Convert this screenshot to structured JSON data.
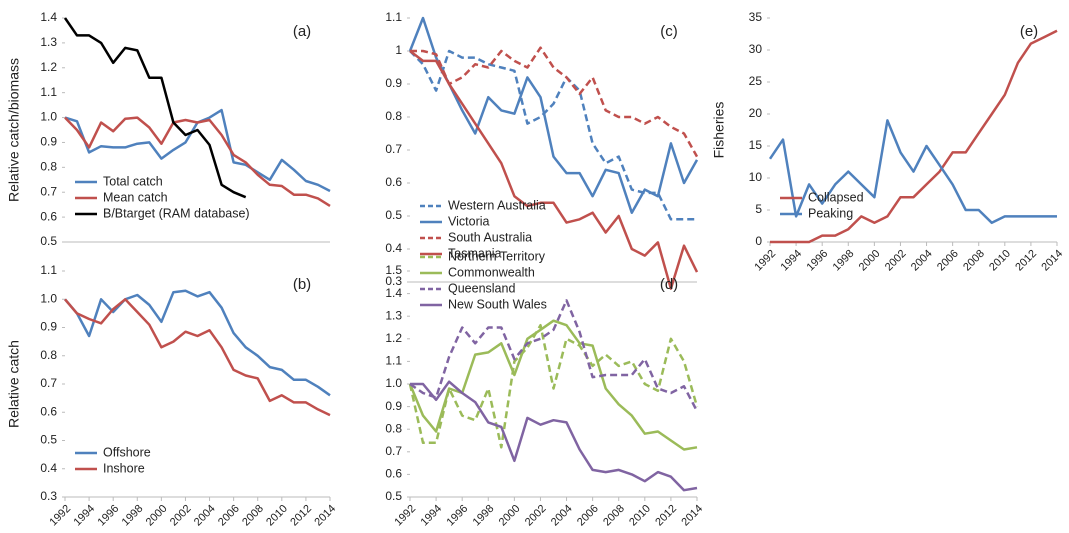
{
  "chart_data": [
    {
      "type": "line",
      "panel_label": "(a)",
      "ylabel": "Relative catch/biomass",
      "legend": "lower left",
      "x": [
        1992,
        1993,
        1994,
        1995,
        1996,
        1997,
        1998,
        1999,
        2000,
        2001,
        2002,
        2003,
        2004,
        2005,
        2006,
        2007,
        2008,
        2009,
        2010,
        2011,
        2012,
        2013,
        2014
      ],
      "xlim": [
        1992,
        2014
      ],
      "ylim": [
        0.5,
        1.4
      ],
      "yticks": [
        0.5,
        0.6,
        0.7,
        0.8,
        0.9,
        {
          "value": 1,
          "label": "1.0"
        },
        1.1,
        1.2,
        1.3,
        1.4
      ],
      "series": [
        {
          "name": "Total catch",
          "color": "#4f81bd",
          "dash": false,
          "values": [
            1.0,
            0.985,
            0.86,
            0.885,
            0.88,
            0.88,
            0.895,
            0.9,
            0.835,
            0.87,
            0.9,
            0.98,
            1.0,
            1.03,
            0.82,
            0.81,
            0.78,
            0.75,
            0.83,
            0.79,
            0.745,
            0.73,
            0.705
          ]
        },
        {
          "name": "Mean catch",
          "color": "#c0504d",
          "dash": false,
          "values": [
            1.0,
            0.95,
            0.88,
            0.98,
            0.945,
            0.995,
            1.0,
            0.96,
            0.895,
            0.98,
            0.99,
            0.98,
            0.99,
            0.93,
            0.85,
            0.82,
            0.77,
            0.73,
            0.725,
            0.69,
            0.69,
            0.675,
            0.645
          ]
        },
        {
          "name": "B/Btarget (RAM database)",
          "color": "#000000",
          "dash": false,
          "values": [
            1.4,
            1.33,
            1.33,
            1.3,
            1.22,
            1.28,
            1.27,
            1.16,
            1.16,
            0.98,
            0.93,
            0.95,
            0.89,
            0.73,
            0.7,
            0.68,
            null,
            null,
            null,
            null,
            null,
            null,
            null
          ]
        }
      ]
    },
    {
      "type": "line",
      "panel_label": "(b)",
      "ylabel": "Relative catch",
      "legend": "lower left",
      "x": [
        1992,
        1993,
        1994,
        1995,
        1996,
        1997,
        1998,
        1999,
        2000,
        2001,
        2002,
        2003,
        2004,
        2005,
        2006,
        2007,
        2008,
        2009,
        2010,
        2011,
        2012,
        2013,
        2014
      ],
      "xlim": [
        1992,
        2014
      ],
      "xticks": [
        1992,
        1994,
        1996,
        1998,
        2000,
        2002,
        2004,
        2006,
        2008,
        2010,
        2012,
        2014
      ],
      "ylim": [
        0.3,
        1.1
      ],
      "yticks": [
        0.3,
        0.4,
        0.5,
        0.6,
        0.7,
        0.8,
        0.9,
        {
          "value": 1,
          "label": "1.0"
        },
        1.1
      ],
      "series": [
        {
          "name": "Offshore",
          "color": "#4f81bd",
          "dash": false,
          "values": [
            1.0,
            0.95,
            0.87,
            1.0,
            0.955,
            1.0,
            1.015,
            0.98,
            0.92,
            1.025,
            1.03,
            1.01,
            1.025,
            0.97,
            0.88,
            0.83,
            0.8,
            0.76,
            0.75,
            0.715,
            0.715,
            0.69,
            0.66
          ]
        },
        {
          "name": "Inshore",
          "color": "#c0504d",
          "dash": false,
          "values": [
            1.0,
            0.95,
            0.93,
            0.915,
            0.965,
            1.0,
            0.955,
            0.91,
            0.83,
            0.85,
            0.885,
            0.87,
            0.89,
            0.83,
            0.75,
            0.73,
            0.72,
            0.64,
            0.66,
            0.635,
            0.635,
            0.61,
            0.59
          ]
        }
      ]
    },
    {
      "type": "line",
      "panel_label": "(c)",
      "legend": "lower left",
      "x": [
        1992,
        1993,
        1994,
        1995,
        1996,
        1997,
        1998,
        1999,
        2000,
        2001,
        2002,
        2003,
        2004,
        2005,
        2006,
        2007,
        2008,
        2009,
        2010,
        2011,
        2012,
        2013,
        2014
      ],
      "xlim": [
        1992,
        2014
      ],
      "ylim": [
        0.3,
        1.1
      ],
      "yticks": [
        0.3,
        0.4,
        0.5,
        0.6,
        0.7,
        0.8,
        0.9,
        1,
        1.1
      ],
      "series": [
        {
          "name": "Western Australia",
          "color": "#4f81bd",
          "dash": true,
          "values": [
            1.0,
            0.96,
            0.88,
            1.0,
            0.98,
            0.98,
            0.96,
            0.95,
            0.94,
            0.78,
            0.8,
            0.84,
            0.92,
            0.88,
            0.72,
            0.66,
            0.68,
            0.58,
            0.57,
            0.57,
            0.49,
            0.49,
            0.49
          ]
        },
        {
          "name": "Victoria",
          "color": "#4f81bd",
          "dash": false,
          "values": [
            1.0,
            1.1,
            0.98,
            0.9,
            0.82,
            0.75,
            0.86,
            0.82,
            0.81,
            0.92,
            0.86,
            0.68,
            0.63,
            0.63,
            0.56,
            0.64,
            0.63,
            0.51,
            0.58,
            0.56,
            0.72,
            0.6,
            0.67
          ]
        },
        {
          "name": "South Australia",
          "color": "#c0504d",
          "dash": true,
          "values": [
            1.0,
            1.0,
            0.99,
            0.9,
            0.92,
            0.96,
            0.95,
            1.0,
            0.97,
            0.95,
            1.01,
            0.95,
            0.92,
            0.87,
            0.92,
            0.82,
            0.8,
            0.8,
            0.78,
            0.8,
            0.77,
            0.75,
            0.68
          ]
        },
        {
          "name": "Tasmania",
          "color": "#c0504d",
          "dash": false,
          "values": [
            1.0,
            0.97,
            0.97,
            0.9,
            0.84,
            0.78,
            0.72,
            0.66,
            0.56,
            0.53,
            0.54,
            0.54,
            0.48,
            0.49,
            0.51,
            0.45,
            0.5,
            0.4,
            0.38,
            0.42,
            0.28,
            0.41,
            0.33
          ]
        }
      ]
    },
    {
      "type": "line",
      "panel_label": "(d)",
      "legend": "upper left",
      "x": [
        1992,
        1993,
        1994,
        1995,
        1996,
        1997,
        1998,
        1999,
        2000,
        2001,
        2002,
        2003,
        2004,
        2005,
        2006,
        2007,
        2008,
        2009,
        2010,
        2011,
        2012,
        2013,
        2014
      ],
      "xlim": [
        1992,
        2014
      ],
      "xticks": [
        1992,
        1994,
        1996,
        1998,
        2000,
        2002,
        2004,
        2006,
        2008,
        2010,
        2012,
        2014
      ],
      "ylim": [
        0.5,
        1.5
      ],
      "yticks": [
        0.5,
        0.6,
        0.7,
        0.8,
        0.9,
        {
          "value": 1,
          "label": "1.0"
        },
        1.1,
        1.2,
        1.3,
        1.4,
        1.5
      ],
      "series": [
        {
          "name": "Northern Territory",
          "color": "#9bbb59",
          "dash": true,
          "values": [
            1.0,
            0.74,
            0.74,
            0.98,
            0.86,
            0.84,
            0.98,
            0.72,
            1.1,
            1.16,
            1.26,
            0.98,
            1.2,
            1.17,
            1.08,
            1.13,
            1.08,
            1.1,
            1.0,
            0.97,
            1.2,
            1.1,
            0.9
          ]
        },
        {
          "name": "Commonwealth",
          "color": "#9bbb59",
          "dash": false,
          "values": [
            1.0,
            0.86,
            0.79,
            0.98,
            0.96,
            1.13,
            1.14,
            1.18,
            1.04,
            1.2,
            1.24,
            1.28,
            1.26,
            1.18,
            1.17,
            0.98,
            0.91,
            0.86,
            0.78,
            0.79,
            0.75,
            0.71,
            0.72
          ]
        },
        {
          "name": "Queensland",
          "color": "#8064a2",
          "dash": true,
          "values": [
            1.0,
            0.96,
            0.94,
            1.12,
            1.25,
            1.18,
            1.25,
            1.25,
            1.11,
            1.18,
            1.2,
            1.24,
            1.37,
            1.23,
            1.03,
            1.04,
            1.04,
            1.04,
            1.11,
            0.98,
            0.96,
            0.99,
            0.88
          ]
        },
        {
          "name": "New South Wales",
          "color": "#8064a2",
          "dash": false,
          "values": [
            1.0,
            1.0,
            0.93,
            1.01,
            0.96,
            0.92,
            0.83,
            0.81,
            0.66,
            0.85,
            0.82,
            0.84,
            0.83,
            0.71,
            0.62,
            0.61,
            0.62,
            0.6,
            0.57,
            0.61,
            0.59,
            0.53,
            0.54
          ]
        }
      ]
    },
    {
      "type": "line",
      "panel_label": "(e)",
      "ylabel": "Fisheries",
      "legend": "lower left",
      "x": [
        1992,
        1993,
        1994,
        1995,
        1996,
        1997,
        1998,
        1999,
        2000,
        2001,
        2002,
        2003,
        2004,
        2005,
        2006,
        2007,
        2008,
        2009,
        2010,
        2011,
        2012,
        2013,
        2014
      ],
      "xlim": [
        1992,
        2014
      ],
      "xticks": [
        1992,
        1994,
        1996,
        1998,
        2000,
        2002,
        2004,
        2006,
        2008,
        2010,
        2012,
        2014
      ],
      "ylim": [
        0,
        35
      ],
      "yticks": [
        0,
        5,
        10,
        15,
        20,
        25,
        30,
        35
      ],
      "series": [
        {
          "name": "Collapsed",
          "color": "#c0504d",
          "dash": false,
          "values": [
            0,
            0,
            0,
            0,
            1,
            1,
            2,
            4,
            3,
            4,
            7,
            7,
            9,
            11,
            14,
            14,
            17,
            20,
            23,
            28,
            31,
            32,
            33
          ]
        },
        {
          "name": "Peaking",
          "color": "#4f81bd",
          "dash": false,
          "values": [
            13,
            16,
            4,
            9,
            6,
            9,
            11,
            9,
            7,
            19,
            14,
            11,
            15,
            12,
            9,
            5,
            5,
            3,
            4,
            4,
            4,
            4,
            4
          ]
        }
      ]
    }
  ]
}
